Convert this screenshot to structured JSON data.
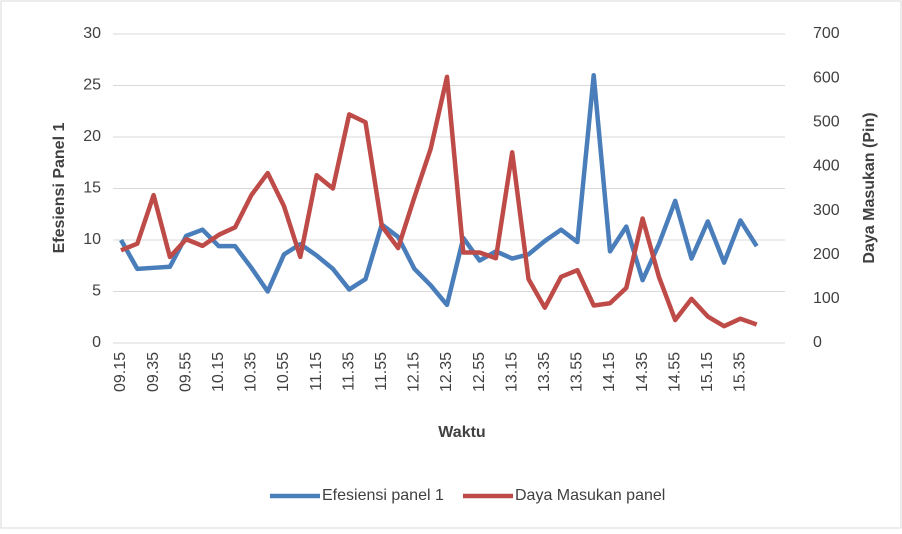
{
  "chart_data": {
    "type": "line",
    "xlabel": "Waktu",
    "ylabel": "Efesiensi Panel 1",
    "y2label": "Daya Masukan (Pin)",
    "categories": [
      "09.15",
      null,
      "09.35",
      null,
      "09.55",
      null,
      "10.15",
      null,
      "10.35",
      null,
      "10.55",
      null,
      "11.15",
      null,
      "11.35",
      null,
      "11.55",
      null,
      "12.15",
      null,
      "12.35",
      null,
      "12.55",
      null,
      "13.15",
      null,
      "13.35",
      null,
      "13.55",
      null,
      "14.15",
      null,
      "14.35",
      null,
      "14.55",
      null,
      "15.15",
      null,
      "15.35",
      null
    ],
    "series": [
      {
        "name": "Efesiensi panel 1",
        "color": "#4a7ebb",
        "values": [
          10,
          7.2,
          7.3,
          7.4,
          10.4,
          11,
          9.4,
          9.4,
          7.3,
          5,
          8.6,
          9.6,
          8.5,
          7.2,
          5.2,
          6.2,
          11.5,
          10.3,
          7.2,
          5.6,
          3.7,
          10.2,
          8,
          8.9,
          8.2,
          8.6,
          9.9,
          11,
          9.8,
          26,
          8.9,
          11.3,
          6.1,
          9.6,
          13.8,
          8.2,
          11.8,
          7.8,
          11.9,
          9.4
        ]
      },
      {
        "name": "Daya Masukan panel",
        "color": "#be4b48",
        "axis": "y2",
        "values": [
          210,
          225,
          335,
          195,
          235,
          220,
          245,
          262,
          335,
          385,
          310,
          195,
          380,
          350,
          518,
          500,
          265,
          215,
          330,
          440,
          603,
          205,
          205,
          192,
          432,
          145,
          80,
          150,
          165,
          85,
          90,
          125,
          282,
          150,
          52,
          100,
          60,
          38,
          55,
          42
        ]
      }
    ],
    "ylim": [
      0,
      30
    ],
    "yticks": [
      0,
      5,
      10,
      15,
      20,
      25,
      30
    ],
    "y2lim": [
      0,
      700
    ],
    "y2ticks": [
      0,
      100,
      200,
      300,
      400,
      500,
      600,
      700
    ],
    "grid": true,
    "legend": "bottom"
  }
}
